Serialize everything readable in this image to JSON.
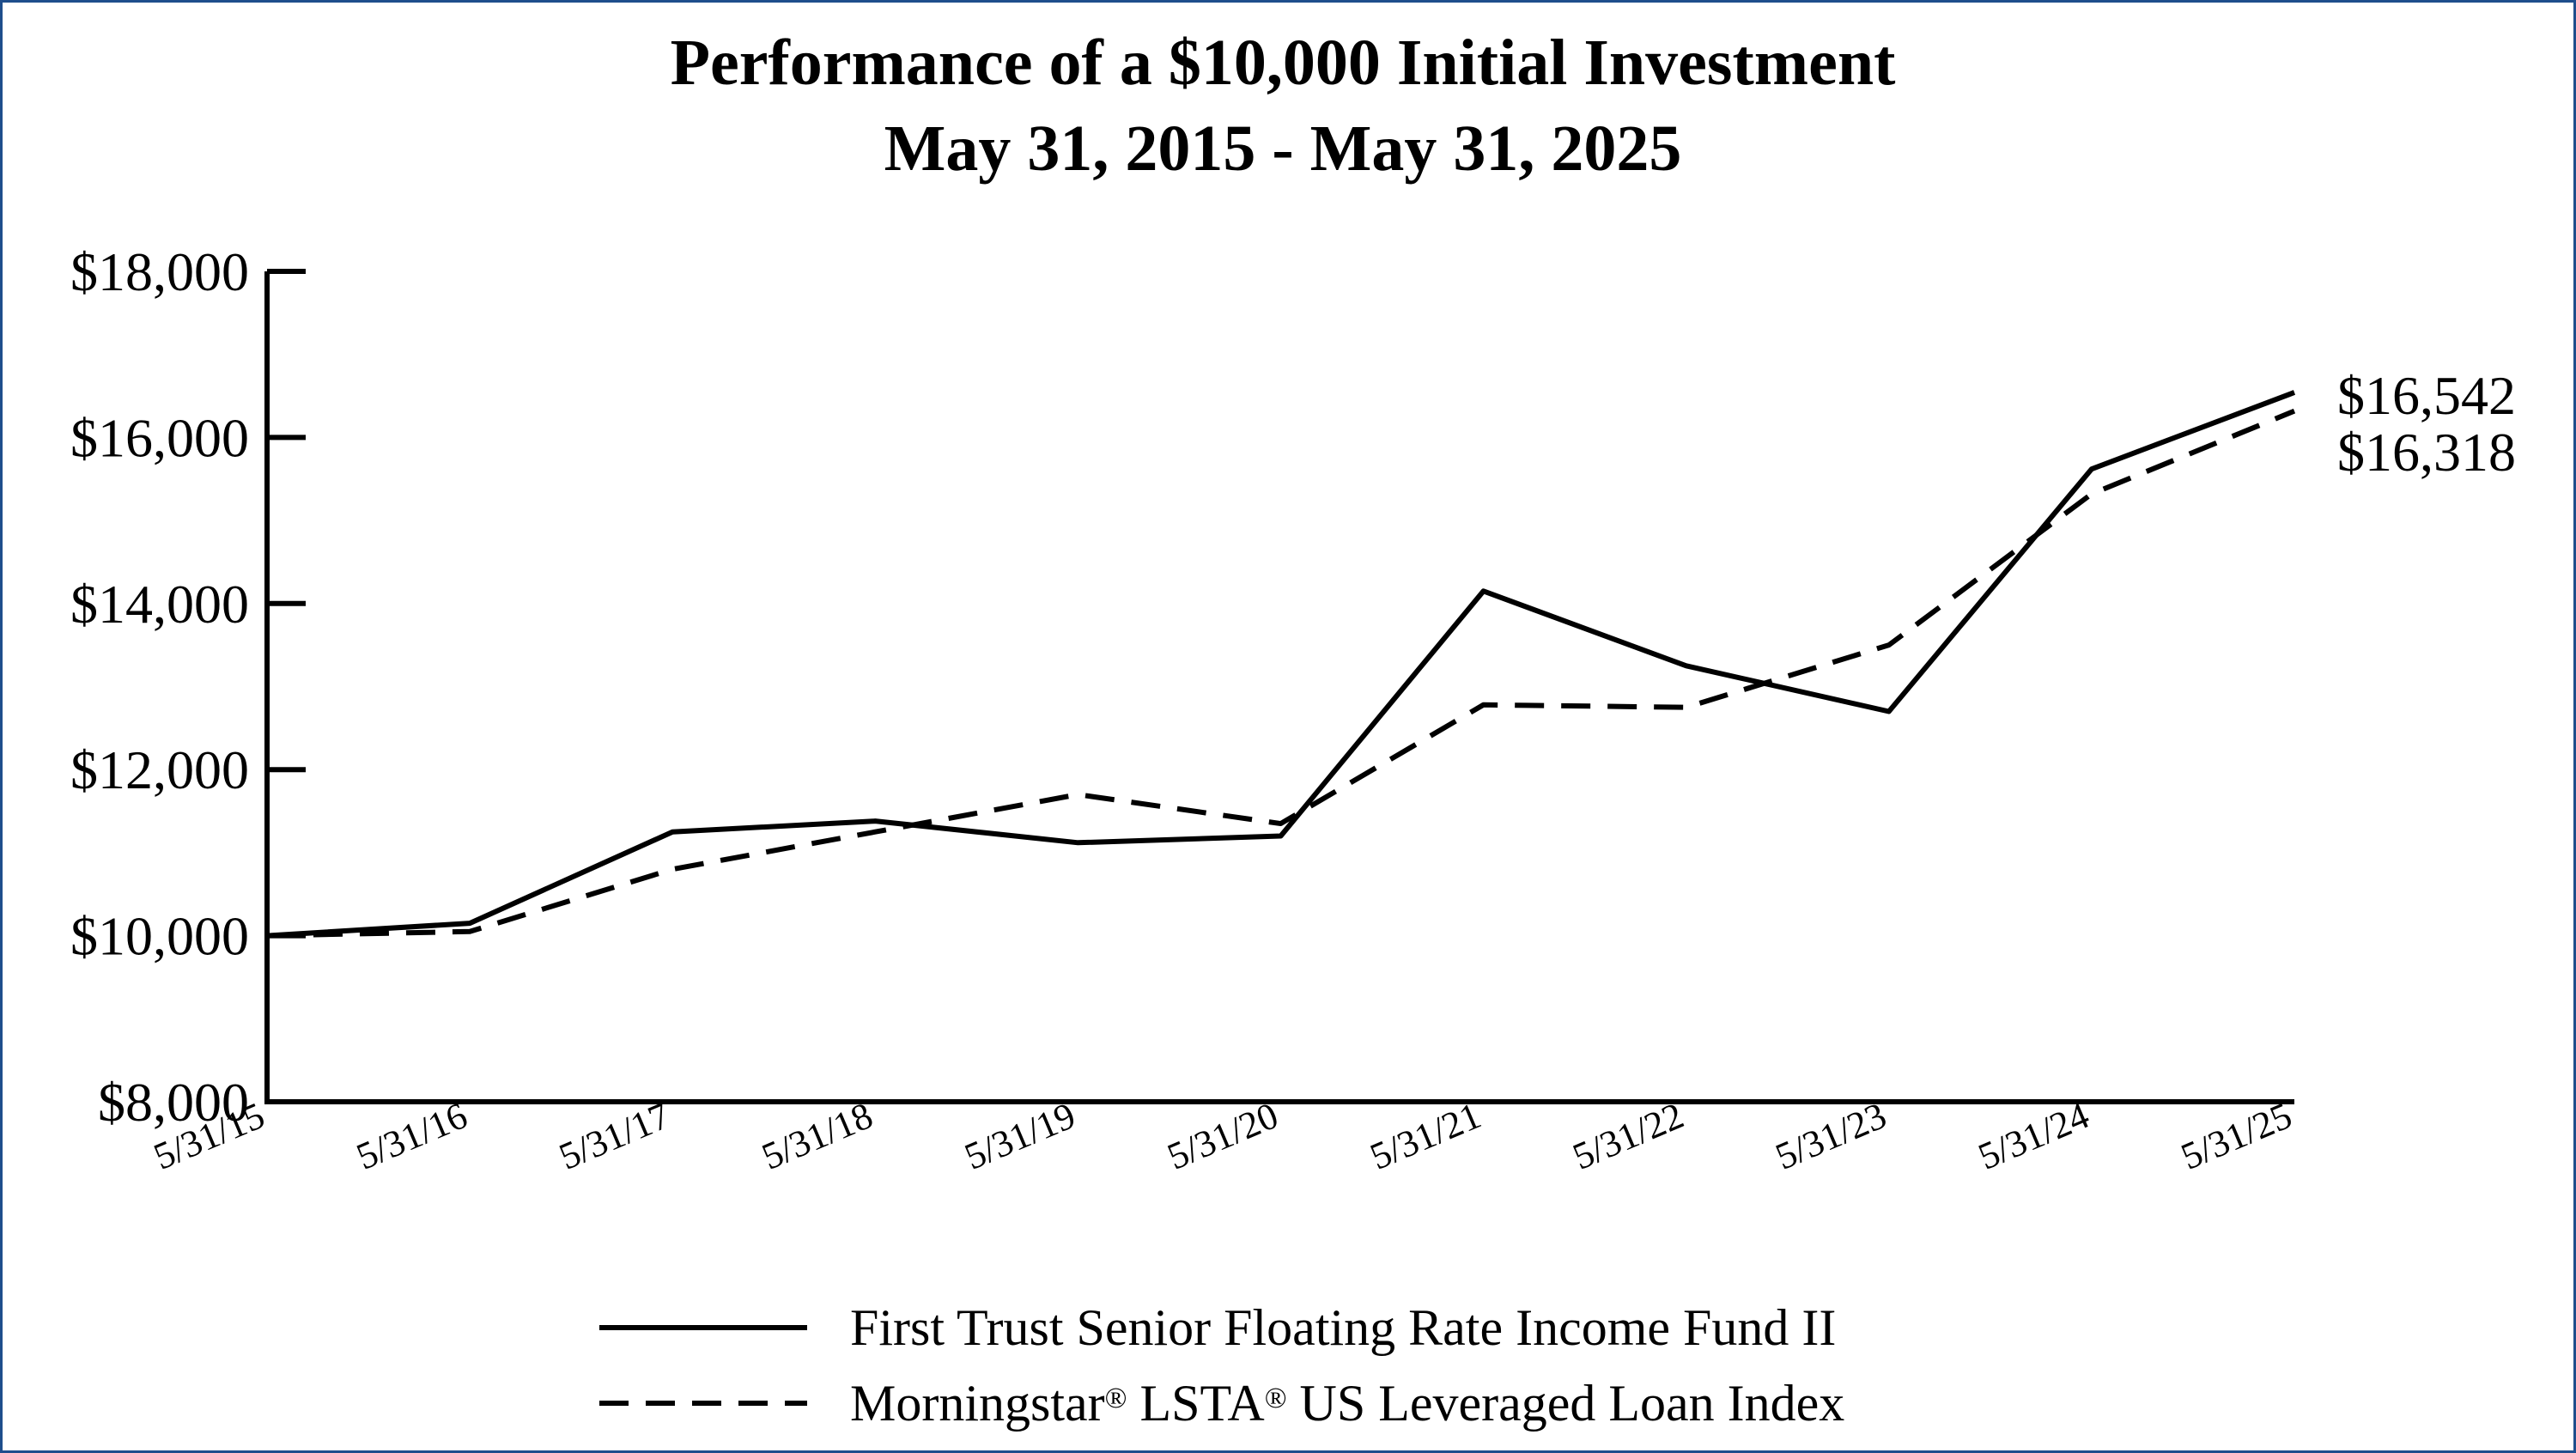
{
  "chart_data": {
    "type": "line",
    "title": "Performance of a $10,000 Initial Investment",
    "subtitle": "May 31, 2015 - May 31, 2025",
    "xlabel": "",
    "ylabel": "",
    "categories": [
      "5/31/15",
      "5/31/16",
      "5/31/17",
      "5/31/18",
      "5/31/19",
      "5/31/20",
      "5/31/21",
      "5/31/22",
      "5/31/23",
      "5/31/24",
      "5/31/25"
    ],
    "ylim": [
      8000,
      18000
    ],
    "yticks": [
      8000,
      10000,
      12000,
      14000,
      16000,
      18000
    ],
    "ytick_labels": [
      "$8,000",
      "$10,000",
      "$12,000",
      "$14,000",
      "$16,000",
      "$18,000"
    ],
    "grid": false,
    "legend_position": "bottom",
    "series": [
      {
        "name": "First Trust Senior Floating Rate Income Fund II",
        "style": "solid",
        "color": "#000000",
        "values": [
          10000,
          10150,
          11250,
          11380,
          11120,
          11200,
          14150,
          13250,
          12700,
          15620,
          16542
        ],
        "end_label": "$16,542"
      },
      {
        "name": "Morningstar® LSTA® US Leveraged Loan Index",
        "legend_parts": [
          "Morningstar",
          "®",
          " LSTA",
          "®",
          " US Leveraged Loan Index"
        ],
        "style": "dashed",
        "color": "#000000",
        "values": [
          10000,
          10050,
          10800,
          11250,
          11700,
          11350,
          12780,
          12750,
          13500,
          15320,
          16318
        ],
        "end_label": "$16,318"
      }
    ]
  }
}
